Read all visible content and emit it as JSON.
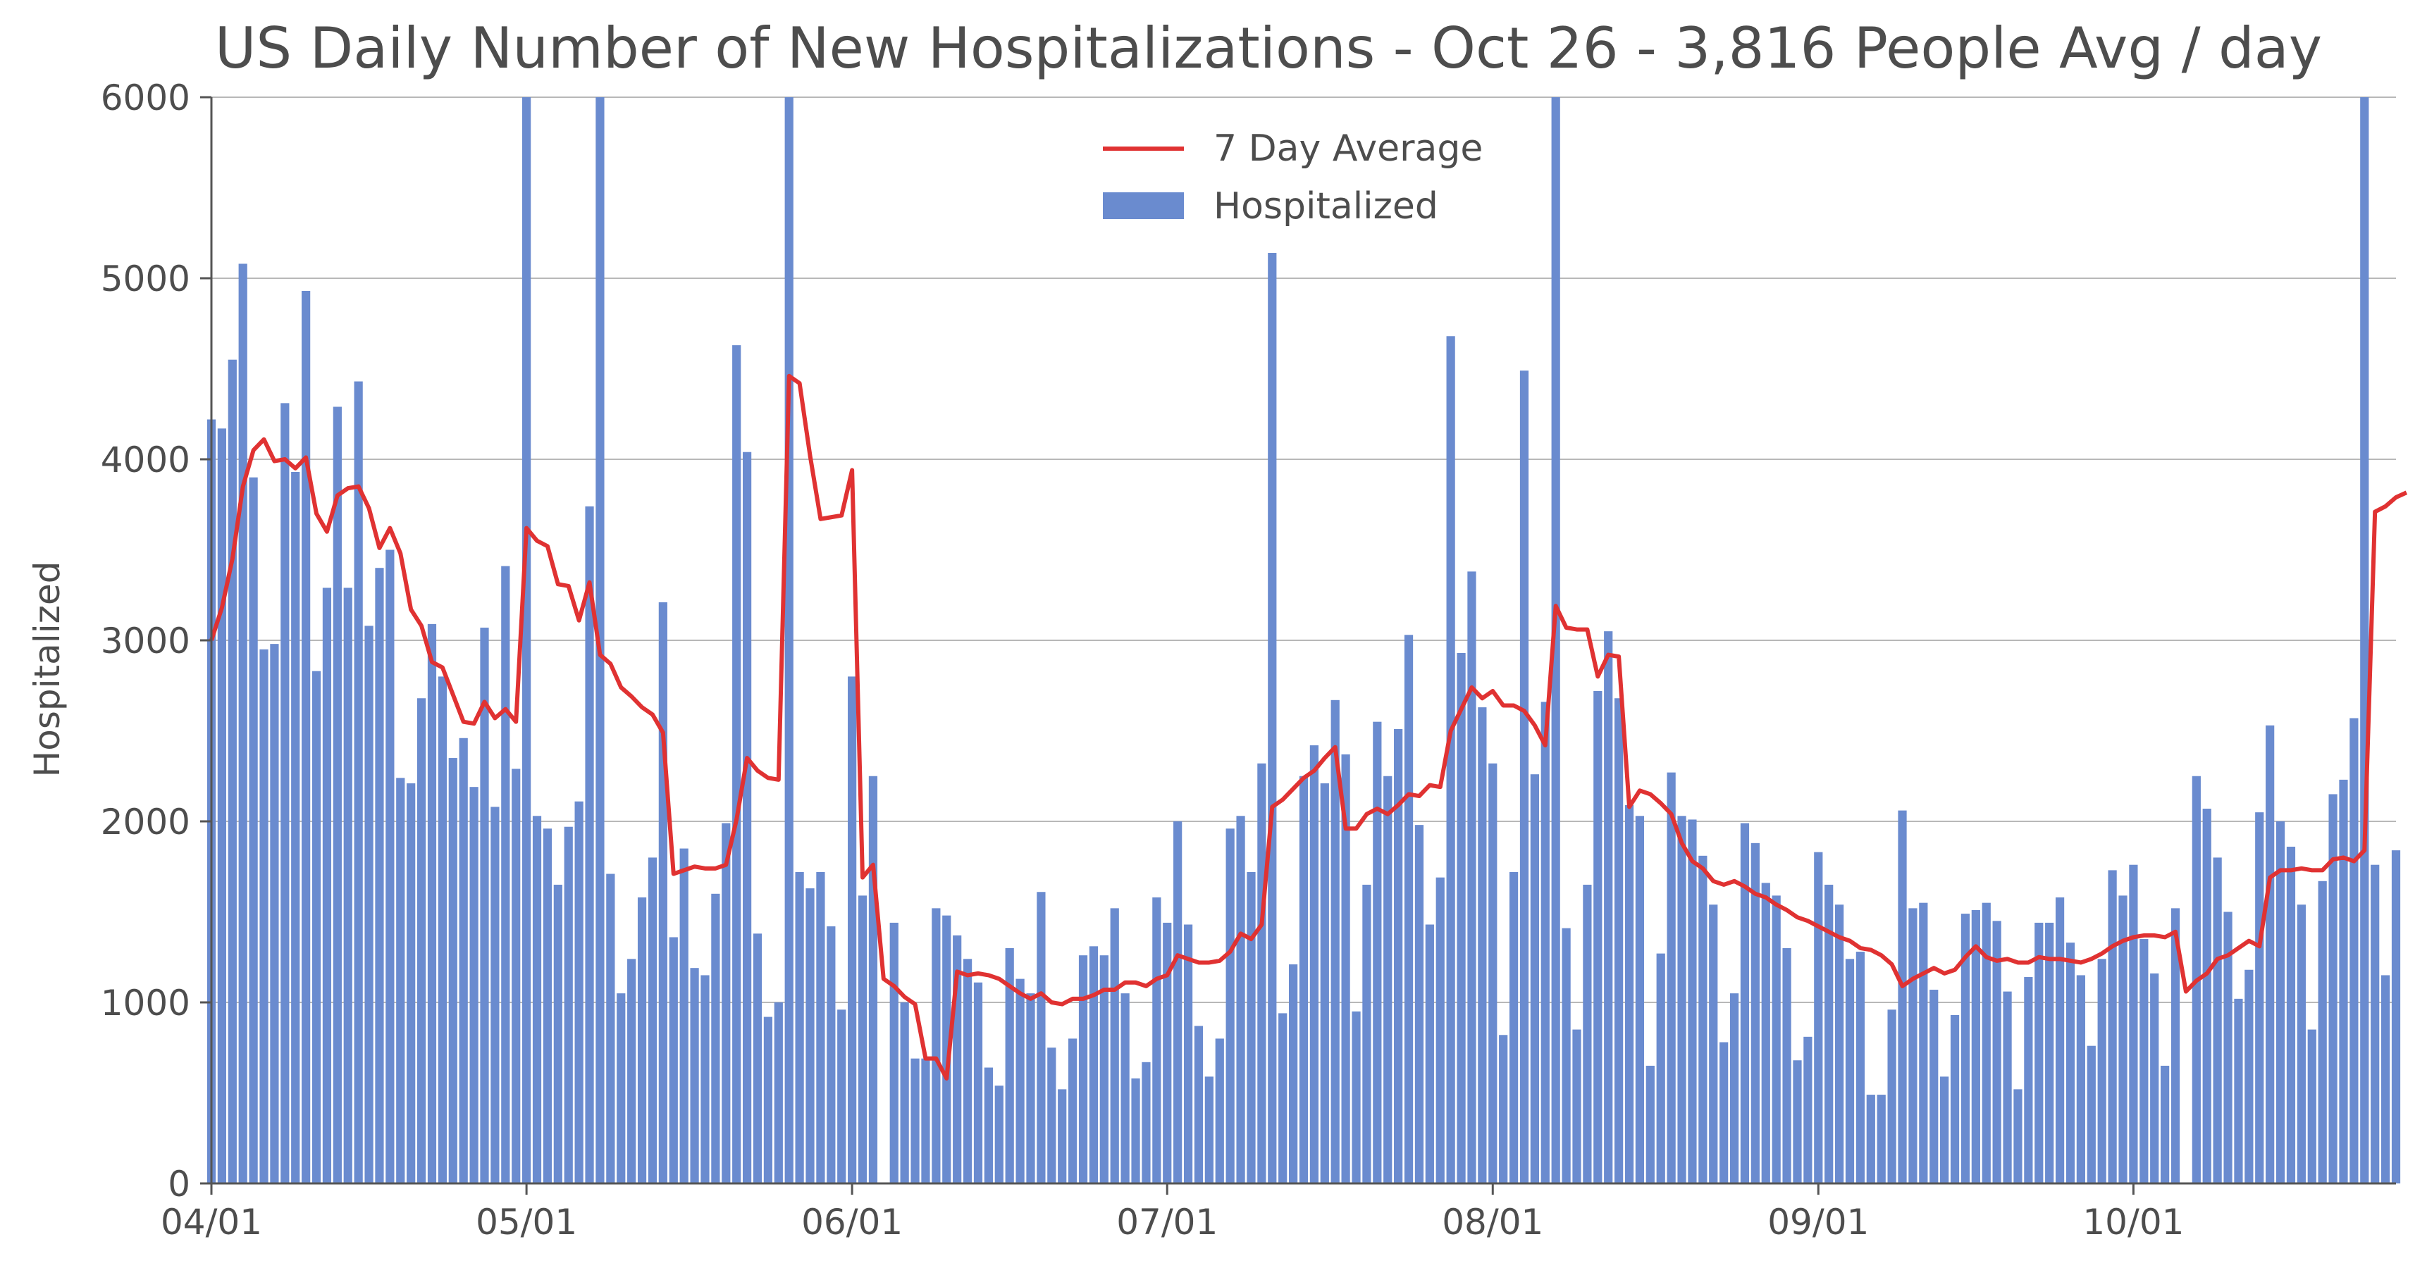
{
  "chart_data": {
    "type": "bar",
    "title": "US Daily Number of New Hospitalizations - Oct 26 - 3,816 People Avg / day",
    "ylabel": "Hospitalized",
    "xlabel": "",
    "ylim": [
      0,
      6000
    ],
    "yticks": [
      0,
      1000,
      2000,
      3000,
      4000,
      5000,
      6000
    ],
    "ytick_labels": [
      "0",
      "1000",
      "2000",
      "3000",
      "4000",
      "5000",
      "6000"
    ],
    "grid": "horizontal",
    "legend_position": "top-center",
    "x_start": "2020-04-01",
    "x_end": "2020-10-26",
    "xticks": [
      {
        "date": "2020-04-01",
        "label": "04/01"
      },
      {
        "date": "2020-05-01",
        "label": "05/01"
      },
      {
        "date": "2020-06-01",
        "label": "06/01"
      },
      {
        "date": "2020-07-01",
        "label": "07/01"
      },
      {
        "date": "2020-08-01",
        "label": "08/01"
      },
      {
        "date": "2020-09-01",
        "label": "09/01"
      },
      {
        "date": "2020-10-01",
        "label": "10/01"
      }
    ],
    "colors": {
      "bars": "#6a8bcf",
      "line": "#e03232",
      "grid": "#b8b8b8",
      "text": "#4d4d4d"
    },
    "series": [
      {
        "name": "Hospitalized",
        "type": "bar",
        "values": [
          4220,
          4170,
          4550,
          5080,
          3900,
          2950,
          2980,
          4310,
          3930,
          4930,
          2830,
          3290,
          4290,
          3290,
          4430,
          3080,
          3400,
          3500,
          2240,
          2210,
          2680,
          3090,
          2800,
          2350,
          2460,
          2190,
          3070,
          2080,
          3410,
          2290,
          6000,
          2030,
          1960,
          1650,
          1970,
          2110,
          3740,
          6000,
          1710,
          1050,
          1240,
          1580,
          1800,
          3210,
          1360,
          1850,
          1190,
          1150,
          1600,
          1990,
          4630,
          4040,
          1380,
          920,
          1000,
          6000,
          1720,
          1630,
          1720,
          1420,
          960,
          2800,
          1590,
          2250,
          0,
          1440,
          1000,
          690,
          690,
          1520,
          1480,
          1370,
          1240,
          1110,
          640,
          540,
          1300,
          1130,
          1050,
          1610,
          750,
          520,
          800,
          1260,
          1310,
          1260,
          1520,
          1050,
          580,
          670,
          1580,
          1440,
          2000,
          1430,
          870,
          590,
          800,
          1960,
          2030,
          1720,
          2320,
          5140,
          940,
          1210,
          2250,
          2420,
          2210,
          2670,
          2370,
          950,
          1650,
          2550,
          2250,
          2510,
          3030,
          1980,
          1430,
          1690,
          4680,
          2930,
          3380,
          2630,
          2320,
          820,
          1720,
          4490,
          2260,
          2660,
          6000,
          1410,
          850,
          1650,
          2720,
          3050,
          2680,
          2090,
          2030,
          650,
          1270,
          2270,
          2030,
          2010,
          1810,
          1540,
          780,
          1050,
          1990,
          1880,
          1660,
          1590,
          1300,
          680,
          810,
          1830,
          1650,
          1540,
          1240,
          1280,
          490,
          490,
          960,
          2060,
          1520,
          1550,
          1070,
          590,
          930,
          1490,
          1510,
          1550,
          1450,
          1060,
          520,
          1140,
          1440,
          1440,
          1580,
          1330,
          1150,
          760,
          1240,
          1730,
          1590,
          1760,
          1350,
          1160,
          650,
          1520,
          0,
          2250,
          2070,
          1800,
          1500,
          1020,
          1180,
          2050,
          2530,
          2000,
          1860,
          1540,
          850,
          1670,
          2150,
          2230,
          2570,
          6000,
          1760,
          1150,
          1840
        ]
      },
      {
        "name": "7 Day Average",
        "type": "line",
        "values": [
          3000,
          3180,
          3450,
          3850,
          4050,
          4110,
          3990,
          4000,
          3950,
          4010,
          3700,
          3600,
          3800,
          3840,
          3850,
          3730,
          3510,
          3620,
          3480,
          3170,
          3080,
          2880,
          2850,
          2700,
          2550,
          2540,
          2660,
          2570,
          2620,
          2550,
          3620,
          3550,
          3520,
          3310,
          3300,
          3110,
          3320,
          2920,
          2870,
          2740,
          2690,
          2630,
          2590,
          2490,
          1710,
          1730,
          1750,
          1740,
          1740,
          1760,
          2010,
          2350,
          2280,
          2240,
          2230,
          4460,
          4420,
          4020,
          3670,
          3680,
          3690,
          3940,
          1690,
          1760,
          1130,
          1090,
          1030,
          990,
          690,
          690,
          580,
          1170,
          1150,
          1160,
          1150,
          1130,
          1090,
          1050,
          1020,
          1050,
          1000,
          990,
          1020,
          1020,
          1040,
          1070,
          1070,
          1110,
          1110,
          1090,
          1130,
          1150,
          1260,
          1240,
          1220,
          1220,
          1230,
          1280,
          1380,
          1350,
          1430,
          2080,
          2120,
          2180,
          2240,
          2280,
          2350,
          2410,
          1960,
          1960,
          2040,
          2070,
          2040,
          2090,
          2150,
          2140,
          2200,
          2190,
          2500,
          2620,
          2740,
          2680,
          2720,
          2640,
          2640,
          2610,
          2530,
          2420,
          3190,
          3070,
          3060,
          3060,
          2800,
          2920,
          2910,
          2080,
          2170,
          2150,
          2100,
          2040,
          1880,
          1780,
          1740,
          1670,
          1650,
          1670,
          1640,
          1600,
          1580,
          1540,
          1510,
          1470,
          1450,
          1420,
          1390,
          1360,
          1340,
          1300,
          1290,
          1260,
          1210,
          1090,
          1130,
          1160,
          1190,
          1160,
          1180,
          1250,
          1310,
          1250,
          1230,
          1240,
          1220,
          1220,
          1250,
          1240,
          1240,
          1230,
          1220,
          1240,
          1270,
          1310,
          1340,
          1360,
          1370,
          1370,
          1360,
          1390,
          1060,
          1120,
          1160,
          1240,
          1260,
          1300,
          1340,
          1310,
          1690,
          1730,
          1730,
          1740,
          1730,
          1730,
          1790,
          1800,
          1780,
          1840,
          3710,
          3740,
          3790,
          3816
        ]
      }
    ]
  }
}
